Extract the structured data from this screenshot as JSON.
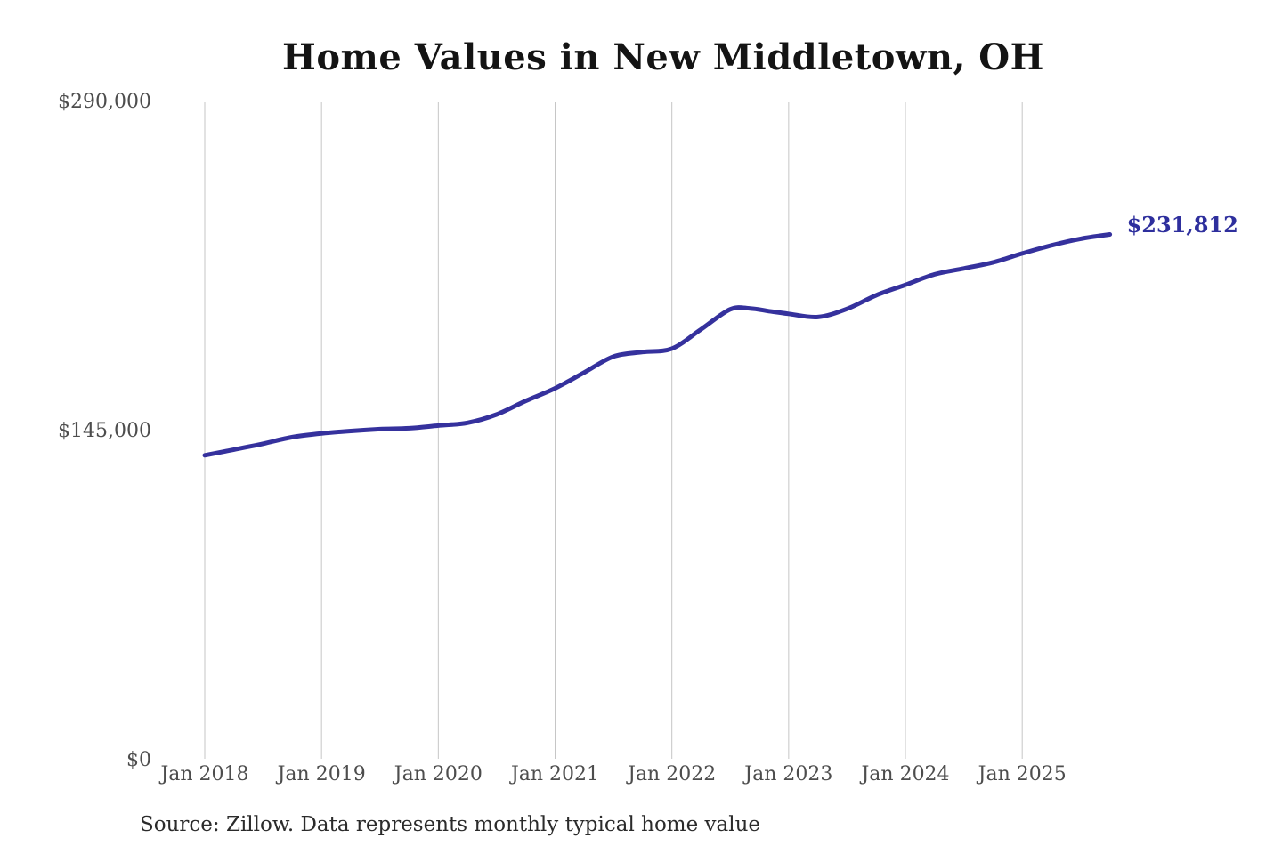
{
  "title": "Home Values in New Middletown, OH",
  "source_note": "Source: Zillow. Data represents monthly typical home value",
  "chart_data": {
    "type": "line",
    "title": "Home Values in New Middletown, OH",
    "series_name": "Monthly typical home value",
    "unit": "USD",
    "xlabel": "",
    "ylabel": "",
    "legend": "none",
    "grid": "vertical-only",
    "line_color": "#35319d",
    "end_label_color": "#2e2f9d",
    "grid_color": "#c6c6c6",
    "tick_color": "#4d4d4d",
    "ylim": [
      0,
      290000
    ],
    "xlim": [
      2018,
      2025.75
    ],
    "y_ticks": [
      {
        "label": "$0",
        "value": 0
      },
      {
        "label": "$145,000",
        "value": 145000
      },
      {
        "label": "$290,000",
        "value": 290000
      }
    ],
    "x_ticks": [
      "Jan 2018",
      "Jan 2019",
      "Jan 2020",
      "Jan 2021",
      "Jan 2022",
      "Jan 2023",
      "Jan 2024",
      "Jan 2025"
    ],
    "x_tick_years": [
      2018,
      2019,
      2020,
      2021,
      2022,
      2023,
      2024,
      2025
    ],
    "last_point_label": "$231,812",
    "last_value": 231812,
    "points": [
      [
        2018.0,
        134500
      ],
      [
        2018.25,
        137000
      ],
      [
        2018.5,
        139600
      ],
      [
        2018.75,
        142500
      ],
      [
        2019.0,
        144100
      ],
      [
        2019.25,
        145200
      ],
      [
        2019.5,
        146000
      ],
      [
        2019.75,
        146400
      ],
      [
        2020.0,
        147600
      ],
      [
        2020.25,
        148800
      ],
      [
        2020.5,
        152500
      ],
      [
        2020.75,
        158500
      ],
      [
        2021.0,
        164000
      ],
      [
        2021.25,
        171000
      ],
      [
        2021.5,
        178000
      ],
      [
        2021.75,
        180000
      ],
      [
        2022.0,
        181500
      ],
      [
        2022.25,
        190000
      ],
      [
        2022.5,
        198800
      ],
      [
        2022.67,
        199200
      ],
      [
        2022.83,
        198000
      ],
      [
        2023.0,
        196800
      ],
      [
        2023.25,
        195400
      ],
      [
        2023.5,
        199000
      ],
      [
        2023.75,
        205000
      ],
      [
        2024.0,
        209600
      ],
      [
        2024.25,
        214200
      ],
      [
        2024.5,
        216800
      ],
      [
        2024.75,
        219500
      ],
      [
        2025.0,
        223400
      ],
      [
        2025.25,
        227000
      ],
      [
        2025.5,
        229900
      ],
      [
        2025.75,
        231812
      ]
    ]
  }
}
